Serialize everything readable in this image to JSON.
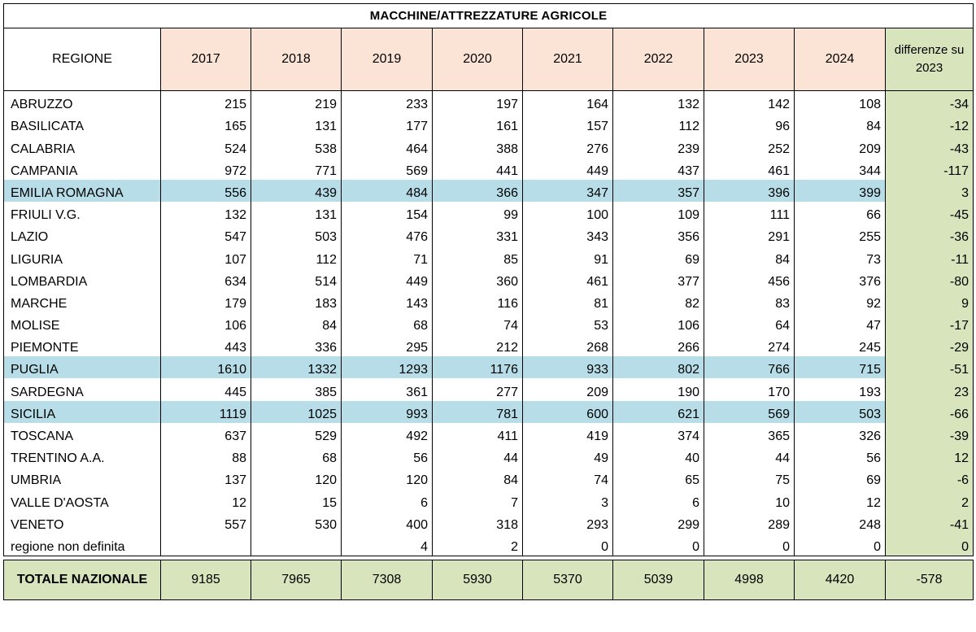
{
  "table": {
    "title": "MACCHINE/ATTREZZATURE AGRICOLE",
    "headers": {
      "region": "REGIONE",
      "years": [
        "2017",
        "2018",
        "2019",
        "2020",
        "2021",
        "2022",
        "2023",
        "2024"
      ],
      "diff": "differenze su 2023"
    },
    "rows": [
      {
        "region": "ABRUZZO",
        "values": [
          "215",
          "219",
          "233",
          "197",
          "164",
          "132",
          "142",
          "108"
        ],
        "diff": "-34",
        "highlight": false
      },
      {
        "region": "BASILICATA",
        "values": [
          "165",
          "131",
          "177",
          "161",
          "157",
          "112",
          "96",
          "84"
        ],
        "diff": "-12",
        "highlight": false
      },
      {
        "region": "CALABRIA",
        "values": [
          "524",
          "538",
          "464",
          "388",
          "276",
          "239",
          "252",
          "209"
        ],
        "diff": "-43",
        "highlight": false
      },
      {
        "region": "CAMPANIA",
        "values": [
          "972",
          "771",
          "569",
          "441",
          "449",
          "437",
          "461",
          "344"
        ],
        "diff": "-117",
        "highlight": false
      },
      {
        "region": "EMILIA ROMAGNA",
        "values": [
          "556",
          "439",
          "484",
          "366",
          "347",
          "357",
          "396",
          "399"
        ],
        "diff": "3",
        "highlight": true
      },
      {
        "region": "FRIULI V.G.",
        "values": [
          "132",
          "131",
          "154",
          "99",
          "100",
          "109",
          "111",
          "66"
        ],
        "diff": "-45",
        "highlight": false
      },
      {
        "region": "LAZIO",
        "values": [
          "547",
          "503",
          "476",
          "331",
          "343",
          "356",
          "291",
          "255"
        ],
        "diff": "-36",
        "highlight": false
      },
      {
        "region": "LIGURIA",
        "values": [
          "107",
          "112",
          "71",
          "85",
          "91",
          "69",
          "84",
          "73"
        ],
        "diff": "-11",
        "highlight": false
      },
      {
        "region": "LOMBARDIA",
        "values": [
          "634",
          "514",
          "449",
          "360",
          "461",
          "377",
          "456",
          "376"
        ],
        "diff": "-80",
        "highlight": false
      },
      {
        "region": "MARCHE",
        "values": [
          "179",
          "183",
          "143",
          "116",
          "81",
          "82",
          "83",
          "92"
        ],
        "diff": "9",
        "highlight": false
      },
      {
        "region": "MOLISE",
        "values": [
          "106",
          "84",
          "68",
          "74",
          "53",
          "106",
          "64",
          "47"
        ],
        "diff": "-17",
        "highlight": false
      },
      {
        "region": "PIEMONTE",
        "values": [
          "443",
          "336",
          "295",
          "212",
          "268",
          "266",
          "274",
          "245"
        ],
        "diff": "-29",
        "highlight": false
      },
      {
        "region": "PUGLIA",
        "values": [
          "1610",
          "1332",
          "1293",
          "1176",
          "933",
          "802",
          "766",
          "715"
        ],
        "diff": "-51",
        "highlight": true
      },
      {
        "region": "SARDEGNA",
        "values": [
          "445",
          "385",
          "361",
          "277",
          "209",
          "190",
          "170",
          "193"
        ],
        "diff": "23",
        "highlight": false
      },
      {
        "region": "SICILIA",
        "values": [
          "1119",
          "1025",
          "993",
          "781",
          "600",
          "621",
          "569",
          "503"
        ],
        "diff": "-66",
        "highlight": true
      },
      {
        "region": "TOSCANA",
        "values": [
          "637",
          "529",
          "492",
          "411",
          "419",
          "374",
          "365",
          "326"
        ],
        "diff": "-39",
        "highlight": false
      },
      {
        "region": "TRENTINO A.A.",
        "values": [
          "88",
          "68",
          "56",
          "44",
          "49",
          "40",
          "44",
          "56"
        ],
        "diff": "12",
        "highlight": false
      },
      {
        "region": "UMBRIA",
        "values": [
          "137",
          "120",
          "120",
          "84",
          "74",
          "65",
          "75",
          "69"
        ],
        "diff": "-6",
        "highlight": false
      },
      {
        "region": "VALLE D'AOSTA",
        "values": [
          "12",
          "15",
          "6",
          "7",
          "3",
          "6",
          "10",
          "12"
        ],
        "diff": "2",
        "highlight": false
      },
      {
        "region": "VENETO",
        "values": [
          "557",
          "530",
          "400",
          "318",
          "293",
          "299",
          "289",
          "248"
        ],
        "diff": "-41",
        "highlight": false
      },
      {
        "region": "regione non definita",
        "values": [
          "",
          "",
          "4",
          "2",
          "0",
          "0",
          "0",
          "0"
        ],
        "diff": "0",
        "highlight": false
      }
    ],
    "total": {
      "label": "TOTALE NAZIONALE",
      "values": [
        "9185",
        "7965",
        "7308",
        "5930",
        "5370",
        "5039",
        "4998",
        "4420"
      ],
      "diff": "-578"
    }
  },
  "colors": {
    "year_header_bg": "#fbe4d5",
    "diff_bg": "#d8e4bc",
    "highlight_row_bg": "#b7dee8"
  }
}
